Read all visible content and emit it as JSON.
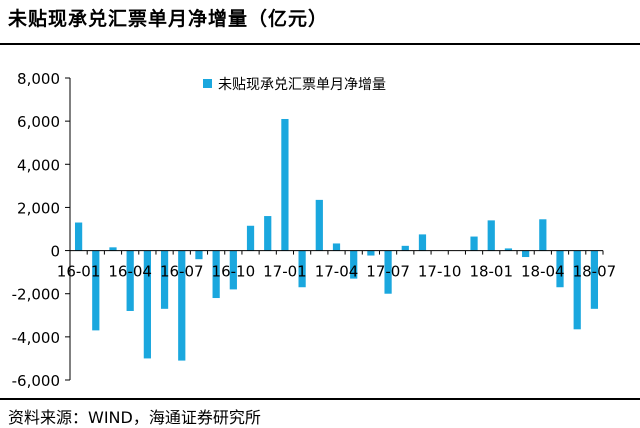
{
  "header": {
    "title": "未贴现承兑汇票单月净增量（亿元）"
  },
  "footer": {
    "source": "资料来源：WIND，海通证券研究所"
  },
  "colors": {
    "bar": "#1aa7de",
    "axis": "#000000"
  },
  "chart_data": {
    "type": "bar",
    "title": "",
    "xlabel": "",
    "ylabel": "",
    "ylim": [
      -6000,
      8000
    ],
    "yticks": [
      8000,
      6000,
      4000,
      2000,
      0,
      -2000,
      -4000,
      -6000
    ],
    "ytick_labels": [
      "8,000",
      "6,000",
      "4,000",
      "2,000",
      "0",
      "-2,000",
      "-4,000",
      "-6,000"
    ],
    "legend_position": "top-center",
    "grid": false,
    "categories": [
      "16-01",
      "16-02",
      "16-03",
      "16-04",
      "16-05",
      "16-06",
      "16-07",
      "16-08",
      "16-09",
      "16-10",
      "16-11",
      "16-12",
      "17-01",
      "17-02",
      "17-03",
      "17-04",
      "17-05",
      "17-06",
      "17-07",
      "17-08",
      "17-09",
      "17-10",
      "17-11",
      "17-12",
      "18-01",
      "18-02",
      "18-03",
      "18-04",
      "18-05",
      "18-06",
      "18-07"
    ],
    "xtick_labels": [
      "16-01",
      "16-04",
      "16-07",
      "16-10",
      "17-01",
      "17-04",
      "17-07",
      "17-10",
      "18-01",
      "18-04",
      "18-07"
    ],
    "series": [
      {
        "name": "未贴现承兑汇票单月净增量",
        "values": [
          1300,
          -3700,
          150,
          -2800,
          -5000,
          -2700,
          -5100,
          -400,
          -2200,
          -1800,
          1150,
          1600,
          6100,
          -1700,
          2350,
          330,
          -1300,
          -230,
          -2000,
          220,
          750,
          0,
          0,
          650,
          1400,
          100,
          -300,
          1450,
          -1700,
          -3650,
          -2700
        ]
      }
    ]
  }
}
